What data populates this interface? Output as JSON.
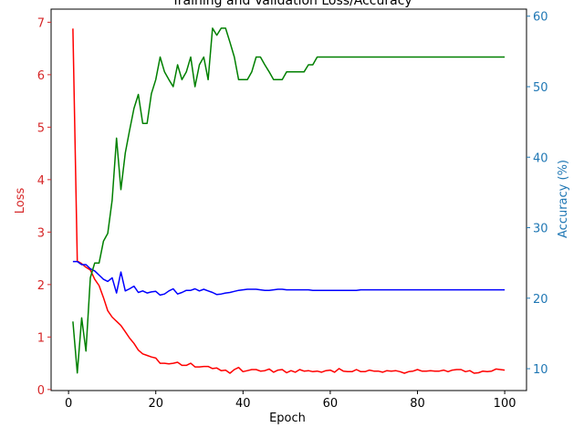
{
  "chart_data": {
    "type": "line",
    "title": "Training and Validation Loss/Accuracy",
    "xlabel": "Epoch",
    "ylabel_left": "Loss",
    "ylabel_right": "Accuracy (%)",
    "xlim": [
      -4,
      105
    ],
    "ylim_left": [
      -0.02,
      7.25
    ],
    "ylim_right": [
      6.9,
      61
    ],
    "xticks": [
      0,
      20,
      40,
      60,
      80,
      100
    ],
    "yticks_left": [
      0,
      1,
      2,
      3,
      4,
      5,
      6,
      7
    ],
    "yticks_right": [
      10,
      20,
      30,
      40,
      50,
      60
    ],
    "grid": false,
    "legend": "none",
    "colors": {
      "left_axis": "#d62728",
      "right_axis": "#1f77b4",
      "train_loss": "#ff0000",
      "val_loss": "#0000ff",
      "accuracy": "#008000"
    },
    "x": [
      1,
      2,
      3,
      4,
      5,
      6,
      7,
      8,
      9,
      10,
      11,
      12,
      13,
      14,
      15,
      16,
      17,
      18,
      19,
      20,
      21,
      22,
      23,
      24,
      25,
      26,
      27,
      28,
      29,
      30,
      31,
      32,
      33,
      34,
      35,
      36,
      37,
      38,
      39,
      40,
      41,
      42,
      43,
      44,
      45,
      46,
      47,
      48,
      49,
      50,
      51,
      52,
      53,
      54,
      55,
      56,
      57,
      58,
      59,
      60,
      61,
      62,
      63,
      64,
      65,
      66,
      67,
      68,
      69,
      70,
      71,
      72,
      73,
      74,
      75,
      76,
      77,
      78,
      79,
      80,
      81,
      82,
      83,
      84,
      85,
      86,
      87,
      88,
      89,
      90,
      91,
      92,
      93,
      94,
      95,
      96,
      97,
      98,
      99,
      100
    ],
    "series": [
      {
        "key": "train_loss",
        "axis": "left",
        "values": [
          6.88,
          2.45,
          2.4,
          2.33,
          2.28,
          2.1,
          1.98,
          1.75,
          1.5,
          1.38,
          1.3,
          1.22,
          1.1,
          0.98,
          0.88,
          0.75,
          0.68,
          0.65,
          0.62,
          0.6,
          0.5,
          0.5,
          0.49,
          0.5,
          0.52,
          0.46,
          0.46,
          0.5,
          0.43,
          0.43,
          0.44,
          0.44,
          0.4,
          0.41,
          0.36,
          0.37,
          0.31,
          0.38,
          0.42,
          0.34,
          0.36,
          0.38,
          0.38,
          0.35,
          0.36,
          0.39,
          0.33,
          0.37,
          0.38,
          0.32,
          0.36,
          0.33,
          0.38,
          0.35,
          0.36,
          0.34,
          0.35,
          0.33,
          0.36,
          0.37,
          0.33,
          0.4,
          0.35,
          0.34,
          0.34,
          0.38,
          0.34,
          0.34,
          0.37,
          0.35,
          0.35,
          0.33,
          0.36,
          0.35,
          0.36,
          0.34,
          0.31,
          0.34,
          0.35,
          0.38,
          0.35,
          0.35,
          0.36,
          0.35,
          0.35,
          0.37,
          0.34,
          0.37,
          0.38,
          0.38,
          0.34,
          0.36,
          0.31,
          0.32,
          0.35,
          0.34,
          0.35,
          0.39,
          0.38,
          0.37
        ]
      },
      {
        "key": "val_loss",
        "axis": "left",
        "values": [
          2.44,
          2.44,
          2.38,
          2.38,
          2.3,
          2.26,
          2.18,
          2.1,
          2.06,
          2.13,
          1.84,
          2.24,
          1.88,
          1.92,
          1.97,
          1.85,
          1.88,
          1.84,
          1.86,
          1.87,
          1.8,
          1.82,
          1.88,
          1.92,
          1.82,
          1.85,
          1.89,
          1.89,
          1.92,
          1.88,
          1.91,
          1.88,
          1.85,
          1.81,
          1.82,
          1.84,
          1.85,
          1.87,
          1.89,
          1.9,
          1.91,
          1.91,
          1.91,
          1.9,
          1.89,
          1.89,
          1.9,
          1.91,
          1.91,
          1.9,
          1.9,
          1.9,
          1.9,
          1.9,
          1.9,
          1.89,
          1.89,
          1.89,
          1.89,
          1.89,
          1.89,
          1.89,
          1.89,
          1.89,
          1.89,
          1.89,
          1.9,
          1.9,
          1.9,
          1.9,
          1.9,
          1.9,
          1.9,
          1.9,
          1.9,
          1.9,
          1.9,
          1.9,
          1.9,
          1.9,
          1.9,
          1.9,
          1.9,
          1.9,
          1.9,
          1.9,
          1.9,
          1.9,
          1.9,
          1.9,
          1.9,
          1.9,
          1.9,
          1.9,
          1.9,
          1.9,
          1.9,
          1.9,
          1.9,
          1.9
        ]
      },
      {
        "key": "accuracy",
        "axis": "right",
        "values": [
          16.7,
          9.4,
          17.2,
          12.5,
          22.9,
          25.0,
          25.0,
          28.1,
          29.2,
          33.9,
          42.7,
          35.4,
          40.6,
          43.8,
          46.9,
          48.9,
          44.8,
          44.8,
          49.0,
          51.0,
          54.2,
          52.1,
          51.0,
          50.0,
          53.1,
          51.0,
          52.1,
          54.2,
          50.0,
          53.1,
          54.2,
          51.0,
          58.3,
          57.3,
          58.3,
          58.3,
          56.3,
          54.2,
          51.0,
          51.0,
          51.0,
          52.1,
          54.2,
          54.2,
          53.1,
          52.1,
          51.0,
          51.0,
          51.0,
          52.1,
          52.1,
          52.1,
          52.1,
          52.1,
          53.1,
          53.1,
          54.2,
          54.2,
          54.2,
          54.2,
          54.2,
          54.2,
          54.2,
          54.2,
          54.2,
          54.2,
          54.2,
          54.2,
          54.2,
          54.2,
          54.2,
          54.2,
          54.2,
          54.2,
          54.2,
          54.2,
          54.2,
          54.2,
          54.2,
          54.2,
          54.2,
          54.2,
          54.2,
          54.2,
          54.2,
          54.2,
          54.2,
          54.2,
          54.2,
          54.2,
          54.2,
          54.2,
          54.2,
          54.2,
          54.2,
          54.2,
          54.2,
          54.2,
          54.2,
          54.2
        ]
      }
    ]
  }
}
